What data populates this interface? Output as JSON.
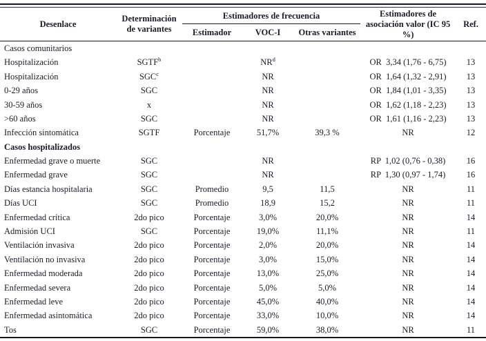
{
  "page": {
    "background": "#ffffff",
    "text_color": "#1b1b28",
    "rule_color": "#15151f"
  },
  "table": {
    "headers": {
      "desenlace": "Desenlace",
      "determinacion": "Determinación de variantes",
      "frecuencia_group": "Estimadores de frecuencia",
      "estimador": "Estimador",
      "voci": "VOC-I",
      "otras": "Otras variantes",
      "asociacion": "Estimadores de asociación valor (IC 95 %)",
      "ref": "Ref."
    },
    "rows": [
      {
        "section": "Casos comunitarios",
        "bold": false
      },
      {
        "outcome": "Hospitalización",
        "det": "SGTF",
        "det_sup": "b",
        "estimador": "",
        "voci": "NR",
        "voci_sup": "d",
        "otras": "",
        "asociacion": "OR  3,34 (1,76 - 6,75)",
        "ref": "13"
      },
      {
        "outcome": "Hospitalización",
        "det": "SGC",
        "det_sup": "c",
        "estimador": "",
        "voci": "NR",
        "otras": "",
        "asociacion": "OR  1,64 (1,32 - 2,91)",
        "ref": "13"
      },
      {
        "outcome": "0-29 años",
        "det": "SGC",
        "estimador": "",
        "voci": "NR",
        "otras": "",
        "asociacion": "OR  1,84 (1,01 - 3,35)",
        "ref": "13"
      },
      {
        "outcome": "30-59 años",
        "det": "x",
        "estimador": "",
        "voci": "NR",
        "otras": "",
        "asociacion": "OR  1,62 (1,18 - 2,23)",
        "ref": "13"
      },
      {
        "outcome": ">60 años",
        "det": "SGC",
        "estimador": "",
        "voci": "NR",
        "otras": "",
        "asociacion": "OR  1,61 (1,16 - 2,23)",
        "ref": "13"
      },
      {
        "outcome": "Infección sintomática",
        "det": "SGTF",
        "estimador": "Porcentaje",
        "voci": "51,7%",
        "otras": "39,3 %",
        "asociacion": "NR",
        "ref": "12"
      },
      {
        "section": "Casos hospitalizados",
        "bold": true
      },
      {
        "outcome": "Enfermedad grave o muerte",
        "det": "SGC",
        "estimador": "",
        "voci": "NR",
        "otras": "",
        "asociacion": "RP  1,02 (0,76 - 0,38)",
        "ref": "16"
      },
      {
        "outcome": "Enfermedad grave",
        "det": "SGC",
        "estimador": "",
        "voci": "NR",
        "otras": "",
        "asociacion": "RP  1,30 (0,97 - 1,74)",
        "ref": "16"
      },
      {
        "outcome": "Días estancia hospitalaria",
        "det": "SGC",
        "estimador": "Promedio",
        "voci": "9,5",
        "otras": "11,5",
        "asociacion": "NR",
        "ref": "11"
      },
      {
        "outcome": "Días UCI",
        "det": "SGC",
        "estimador": "Promedio",
        "voci": "18,9",
        "otras": "15,2",
        "asociacion": "NR",
        "ref": "11"
      },
      {
        "outcome": "Enfermedad crítica",
        "det": "2do pico",
        "estimador": "Porcentaje",
        "voci": "3,0%",
        "otras": "20,0%",
        "asociacion": "NR",
        "ref": "14"
      },
      {
        "outcome": "Admisión UCI",
        "det": "SGC",
        "estimador": "Porcentaje",
        "voci": "19,0%",
        "otras": "11,1%",
        "asociacion": "NR",
        "ref": "11"
      },
      {
        "outcome": "Ventilación invasiva",
        "det": "2do pico",
        "estimador": "Porcentaje",
        "voci": "2,0%",
        "otras": "20,0%",
        "asociacion": "NR",
        "ref": "14"
      },
      {
        "outcome": "Ventilación no invasiva",
        "det": "2do pico",
        "estimador": "Porcentaje",
        "voci": "3,0%",
        "otras": "15,0%",
        "asociacion": "NR",
        "ref": "14"
      },
      {
        "outcome": "Enfermedad moderada",
        "det": "2do pico",
        "estimador": "Porcentaje",
        "voci": "13,0%",
        "otras": "25,0%",
        "asociacion": "NR",
        "ref": "14"
      },
      {
        "outcome": "Enfermedad severa",
        "det": "2do pico",
        "estimador": "Porcentaje",
        "voci": "5,0%",
        "otras": "5,0%",
        "asociacion": "NR",
        "ref": "14"
      },
      {
        "outcome": "Enfermedad leve",
        "det": "2do pico",
        "estimador": "Porcentaje",
        "voci": "45,0%",
        "otras": "40,0%",
        "asociacion": "NR",
        "ref": "14"
      },
      {
        "outcome": "Enfermedad asintomática",
        "det": "2do pico",
        "estimador": "Porcentaje",
        "voci": "33,0%",
        "otras": "10,0%",
        "asociacion": "NR",
        "ref": "14"
      },
      {
        "outcome": "Tos",
        "det": "SGC",
        "estimador": "Porcentaje",
        "voci": "59,0%",
        "otras": "38,0%",
        "asociacion": "NR",
        "ref": "11"
      }
    ]
  }
}
